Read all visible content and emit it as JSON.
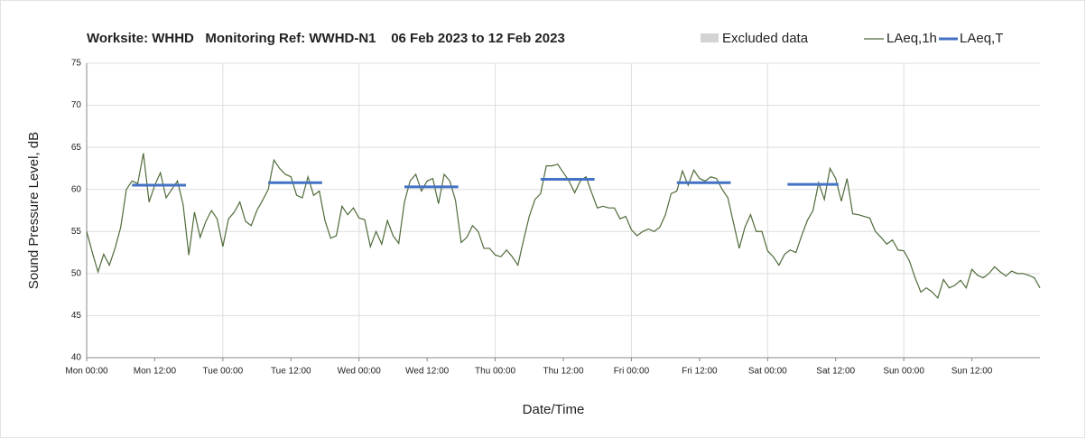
{
  "chart_data": {
    "type": "line",
    "title": "Worksite: WHHD   Monitoring Ref: WWHD-N1    06 Feb 2023 to 12 Feb 2023",
    "xlabel": "Date/Time",
    "ylabel": "Sound Pressure Level, dB",
    "xlim": [
      0,
      168
    ],
    "ylim": [
      40,
      75
    ],
    "yticks": [
      40,
      45,
      50,
      55,
      60,
      65,
      70,
      75
    ],
    "xticks": [
      {
        "value": 0,
        "label": "Mon 00:00"
      },
      {
        "value": 12,
        "label": "Mon 12:00"
      },
      {
        "value": 24,
        "label": "Tue 00:00"
      },
      {
        "value": 36,
        "label": "Tue 12:00"
      },
      {
        "value": 48,
        "label": "Wed 00:00"
      },
      {
        "value": 60,
        "label": "Wed 12:00"
      },
      {
        "value": 72,
        "label": "Thu 00:00"
      },
      {
        "value": 84,
        "label": "Thu 12:00"
      },
      {
        "value": 96,
        "label": "Fri 00:00"
      },
      {
        "value": 108,
        "label": "Fri 12:00"
      },
      {
        "value": 120,
        "label": "Sat 00:00"
      },
      {
        "value": 132,
        "label": "Sat 12:00"
      },
      {
        "value": 144,
        "label": "Sun 00:00"
      },
      {
        "value": 156,
        "label": "Sun 12:00"
      }
    ],
    "grid": true,
    "excluded": {
      "name": "Excluded data",
      "color": "#d4d4d4"
    },
    "series": [
      {
        "name": "LAeq,1h",
        "color": "#4f6b3a",
        "x": [
          0,
          1,
          2,
          3,
          4,
          5,
          6,
          7,
          8,
          9,
          10,
          11,
          12,
          13,
          14,
          15,
          16,
          17,
          18,
          19,
          20,
          21,
          22,
          23,
          24,
          25,
          26,
          27,
          28,
          29,
          30,
          31,
          32,
          33,
          34,
          35,
          36,
          37,
          38,
          39,
          40,
          41,
          42,
          43,
          44,
          45,
          46,
          47,
          48,
          49,
          50,
          51,
          52,
          53,
          54,
          55,
          56,
          57,
          58,
          59,
          60,
          61,
          62,
          63,
          64,
          65,
          66,
          67,
          68,
          69,
          70,
          71,
          72,
          73,
          74,
          75,
          76,
          77,
          78,
          79,
          80,
          81,
          82,
          83,
          84,
          85,
          86,
          87,
          88,
          89,
          90,
          91,
          92,
          93,
          94,
          95,
          96,
          97,
          98,
          99,
          100,
          101,
          102,
          103,
          104,
          105,
          106,
          107,
          108,
          109,
          110,
          111,
          112,
          113,
          114,
          115,
          116,
          117,
          118,
          119,
          120,
          121,
          122,
          123,
          124,
          125,
          126,
          127,
          128,
          129,
          130,
          131,
          132,
          133,
          134,
          135,
          136,
          137,
          138,
          139,
          140,
          141,
          142,
          143,
          144,
          145,
          146,
          147,
          148,
          149,
          150,
          151,
          152,
          153,
          154,
          155,
          156,
          157,
          158,
          159,
          160,
          161,
          162,
          163,
          164,
          165,
          166,
          167,
          168
        ],
        "values": [
          55,
          52.5,
          50.2,
          52.3,
          51,
          53,
          55.5,
          60,
          61,
          60.7,
          64.3,
          58.5,
          60.5,
          62,
          59,
          60,
          61,
          58.2,
          52.2,
          57.3,
          54.3,
          56.2,
          57.5,
          56.5,
          53.2,
          56.5,
          57.3,
          58.5,
          56.2,
          55.7,
          57.5,
          58.7,
          60,
          63.5,
          62.5,
          61.8,
          61.5,
          59.3,
          59,
          61.5,
          59.3,
          59.8,
          56.3,
          54.2,
          54.5,
          58,
          57,
          57.8,
          56.6,
          56.4,
          53.2,
          55,
          53.5,
          56.3,
          54.5,
          53.6,
          58.5,
          61,
          61.8,
          59.8,
          61,
          61.3,
          58.3,
          61.8,
          61,
          58.7,
          53.7,
          54.3,
          55.7,
          55,
          53,
          53,
          52.2,
          52,
          52.8,
          52,
          51,
          54,
          56.8,
          58.8,
          59.5,
          62.8,
          62.8,
          63,
          62,
          61,
          59.6,
          61,
          61.5,
          59.6,
          57.8,
          58,
          57.8,
          57.8,
          56.5,
          56.8,
          55.2,
          54.5,
          55,
          55.3,
          55,
          55.5,
          57,
          59.5,
          59.8,
          62.2,
          60.5,
          62.3,
          61.3,
          61,
          61.5,
          61.3,
          60,
          59,
          56,
          53,
          55.5,
          57,
          55,
          55,
          52.7,
          52,
          51,
          52.3,
          52.8,
          52.5,
          54.5,
          56.3,
          57.5,
          60.8,
          58.8,
          62.5,
          61.3,
          58.6,
          61.3,
          57.1,
          57,
          56.8,
          56.6,
          55,
          54.3,
          53.5,
          54,
          52.8,
          52.7,
          51.5,
          49.5,
          47.8,
          48.3,
          47.8,
          47.1,
          49.3,
          48.3,
          48.6,
          49.2,
          48.3,
          50.5,
          49.8,
          49.5,
          50,
          50.8,
          50.2,
          49.7,
          50.3,
          50,
          50,
          49.8,
          49.5,
          48.3
        ]
      },
      {
        "name": "LAeq,T",
        "color": "#4472c4",
        "start": [
          8,
          32,
          56,
          80,
          104,
          123.5
        ],
        "end": [
          17.5,
          41.5,
          65.5,
          89.5,
          113.5,
          132.5
        ],
        "values": [
          60.5,
          60.8,
          60.3,
          61.2,
          60.8,
          60.6
        ]
      }
    ]
  }
}
